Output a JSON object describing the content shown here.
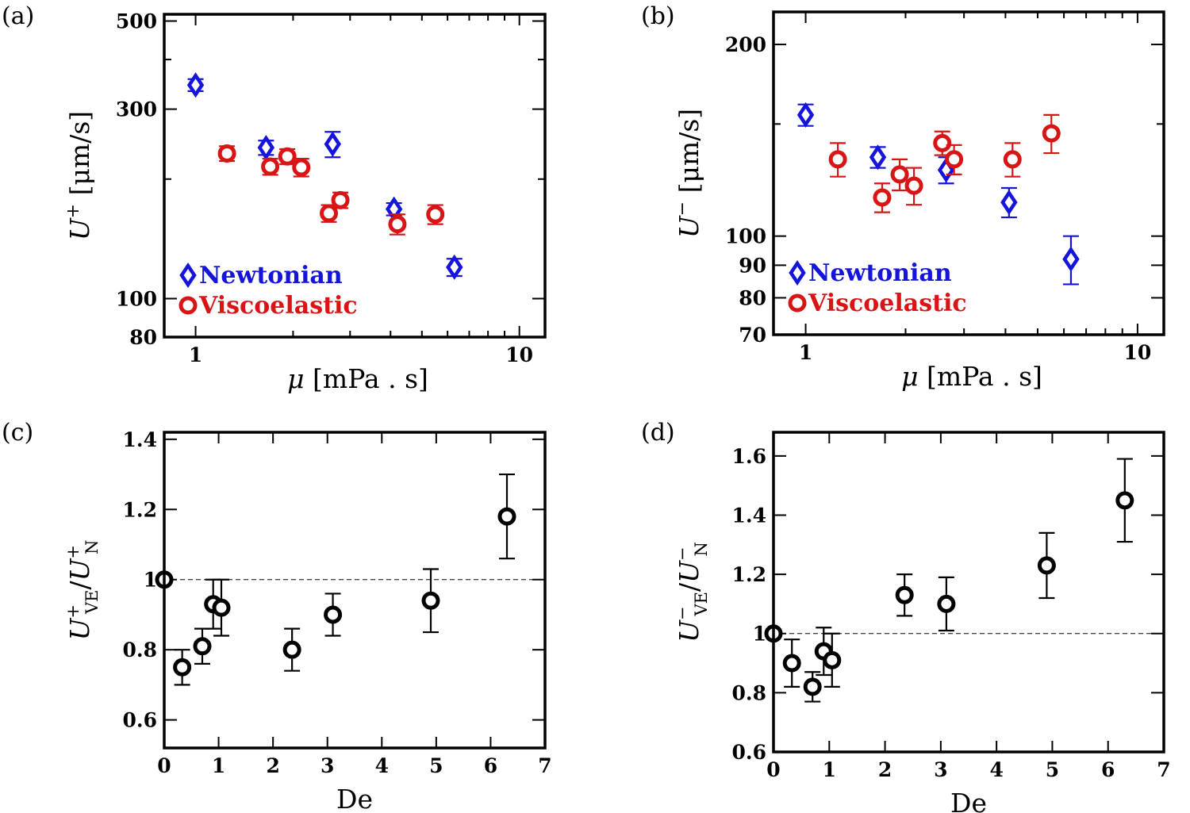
{
  "colors": {
    "newtonian": "#1414dc",
    "viscoelastic": "#d81414",
    "black": "#000000"
  },
  "chart_data": [
    {
      "id": "a",
      "panel_label": "(a)",
      "type": "scatter",
      "xscale": "log",
      "yscale": "log",
      "xlim": [
        0.8,
        12
      ],
      "ylim": [
        80,
        520
      ],
      "xticks": [
        1,
        10
      ],
      "xtick_labels": [
        "1",
        "10"
      ],
      "yticks": [
        80,
        100,
        300,
        500
      ],
      "ytick_labels": [
        "80",
        "100",
        "300",
        "500"
      ],
      "minor_yticks": [
        200,
        400
      ],
      "xlabel": "μ  [mPa . s]",
      "ylabel": "U+  [μm/s]",
      "ylabel_parts": {
        "sym": "U",
        "sup": "+",
        "unit": "[μm/s]"
      },
      "xlabel_parts": {
        "sym": "μ",
        "unit": "[mPa . s]"
      },
      "legend": {
        "position": "bottom-left",
        "entries": [
          "Newtonian",
          "Viscoelastic"
        ]
      },
      "series": [
        {
          "name": "Newtonian",
          "marker": "diamond",
          "x": [
            1.0,
            1.65,
            2.65,
            4.1,
            6.3
          ],
          "y": [
            345,
            240,
            245,
            168,
            120
          ],
          "err_lo": [
            12,
            10,
            18,
            6,
            6
          ],
          "err_hi": [
            12,
            10,
            18,
            6,
            6
          ]
        },
        {
          "name": "Viscoelastic",
          "marker": "circle",
          "x": [
            1.25,
            1.7,
            1.92,
            2.12,
            2.58,
            2.8,
            4.2,
            5.5
          ],
          "y": [
            232,
            215,
            228,
            214,
            164,
            177,
            154,
            163
          ],
          "err_lo": [
            10,
            10,
            10,
            11,
            8,
            8,
            9,
            9
          ],
          "err_hi": [
            10,
            10,
            10,
            11,
            8,
            8,
            9,
            9
          ]
        }
      ]
    },
    {
      "id": "b",
      "panel_label": "(b)",
      "type": "scatter",
      "xscale": "log",
      "yscale": "log",
      "xlim": [
        0.8,
        12
      ],
      "ylim": [
        70,
        225
      ],
      "xticks": [
        1,
        10
      ],
      "xtick_labels": [
        "1",
        "10"
      ],
      "yticks": [
        70,
        80,
        90,
        100,
        200
      ],
      "ytick_labels": [
        "70",
        "80",
        "90",
        "100",
        "200"
      ],
      "minor_yticks": [
        150
      ],
      "xlabel": "μ  [mPa . s]",
      "ylabel": "U−  [μm/s]",
      "ylabel_parts": {
        "sym": "U",
        "sup": "−",
        "unit": "[μm/s]"
      },
      "xlabel_parts": {
        "sym": "μ",
        "unit": "[mPa . s]"
      },
      "legend": {
        "position": "bottom-left",
        "entries": [
          "Newtonian",
          "Viscoelastic"
        ]
      },
      "series": [
        {
          "name": "Newtonian",
          "marker": "diamond",
          "x": [
            1.0,
            1.65,
            2.65,
            4.1,
            6.3
          ],
          "y": [
            155,
            133,
            127,
            113,
            92
          ],
          "err_lo": [
            6,
            5,
            6,
            6,
            8
          ],
          "err_hi": [
            6,
            5,
            6,
            6,
            8
          ]
        },
        {
          "name": "Viscoelastic",
          "marker": "circle",
          "x": [
            1.25,
            1.7,
            1.92,
            2.12,
            2.58,
            2.8,
            4.2,
            5.5
          ],
          "y": [
            132,
            115,
            125,
            120,
            140,
            132,
            132,
            145
          ],
          "err_lo": [
            8,
            6,
            7,
            8,
            6,
            7,
            8,
            10
          ],
          "err_hi": [
            8,
            6,
            7,
            8,
            6,
            7,
            8,
            10
          ]
        }
      ]
    },
    {
      "id": "c",
      "panel_label": "(c)",
      "type": "scatter",
      "xscale": "linear",
      "yscale": "linear",
      "xlim": [
        0,
        7
      ],
      "ylim": [
        0.52,
        1.42
      ],
      "xticks": [
        0,
        1,
        2,
        3,
        4,
        5,
        6,
        7
      ],
      "xtick_labels": [
        "0",
        "1",
        "2",
        "3",
        "4",
        "5",
        "6",
        "7"
      ],
      "yticks": [
        0.6,
        0.8,
        1.0,
        1.2,
        1.4
      ],
      "ytick_labels": [
        "0.6",
        "0.8",
        "1",
        "1.2",
        "1.4"
      ],
      "reference_line": 1.0,
      "xlabel": "De",
      "ylabel": "U+VE/U+N",
      "ylabel_parts": {
        "sym": "U",
        "sup": "+",
        "sub1": "VE",
        "sub2": "N"
      },
      "series": [
        {
          "name": "ratio",
          "marker": "circle",
          "x": [
            0,
            0.33,
            0.7,
            0.9,
            1.05,
            2.35,
            3.1,
            4.9,
            6.3
          ],
          "y": [
            1.0,
            0.75,
            0.81,
            0.93,
            0.92,
            0.8,
            0.9,
            0.94,
            1.18
          ],
          "err_lo": [
            0,
            0.05,
            0.05,
            0.07,
            0.08,
            0.06,
            0.06,
            0.09,
            0.12
          ],
          "err_hi": [
            0,
            0.05,
            0.05,
            0.07,
            0.08,
            0.06,
            0.06,
            0.09,
            0.12
          ]
        }
      ]
    },
    {
      "id": "d",
      "panel_label": "(d)",
      "type": "scatter",
      "xscale": "linear",
      "yscale": "linear",
      "xlim": [
        0,
        7
      ],
      "ylim": [
        0.6,
        1.68
      ],
      "xticks": [
        0,
        1,
        2,
        3,
        4,
        5,
        6,
        7
      ],
      "xtick_labels": [
        "0",
        "1",
        "2",
        "3",
        "4",
        "5",
        "6",
        "7"
      ],
      "yticks": [
        0.6,
        0.8,
        1.0,
        1.2,
        1.4,
        1.6
      ],
      "ytick_labels": [
        "0.6",
        "0.8",
        "1",
        "1.2",
        "1.4",
        "1.6"
      ],
      "reference_line": 1.0,
      "xlabel": "De",
      "ylabel": "U−VE/U−N",
      "ylabel_parts": {
        "sym": "U",
        "sup": "−",
        "sub1": "VE",
        "sub2": "N"
      },
      "series": [
        {
          "name": "ratio",
          "marker": "circle",
          "x": [
            0,
            0.33,
            0.7,
            0.9,
            1.05,
            2.35,
            3.1,
            4.9,
            6.3
          ],
          "y": [
            1.0,
            0.9,
            0.82,
            0.94,
            0.91,
            1.13,
            1.1,
            1.23,
            1.45
          ],
          "err_lo": [
            0,
            0.08,
            0.05,
            0.08,
            0.09,
            0.07,
            0.09,
            0.11,
            0.14
          ],
          "err_hi": [
            0,
            0.08,
            0.05,
            0.08,
            0.09,
            0.07,
            0.09,
            0.11,
            0.14
          ]
        }
      ]
    }
  ]
}
